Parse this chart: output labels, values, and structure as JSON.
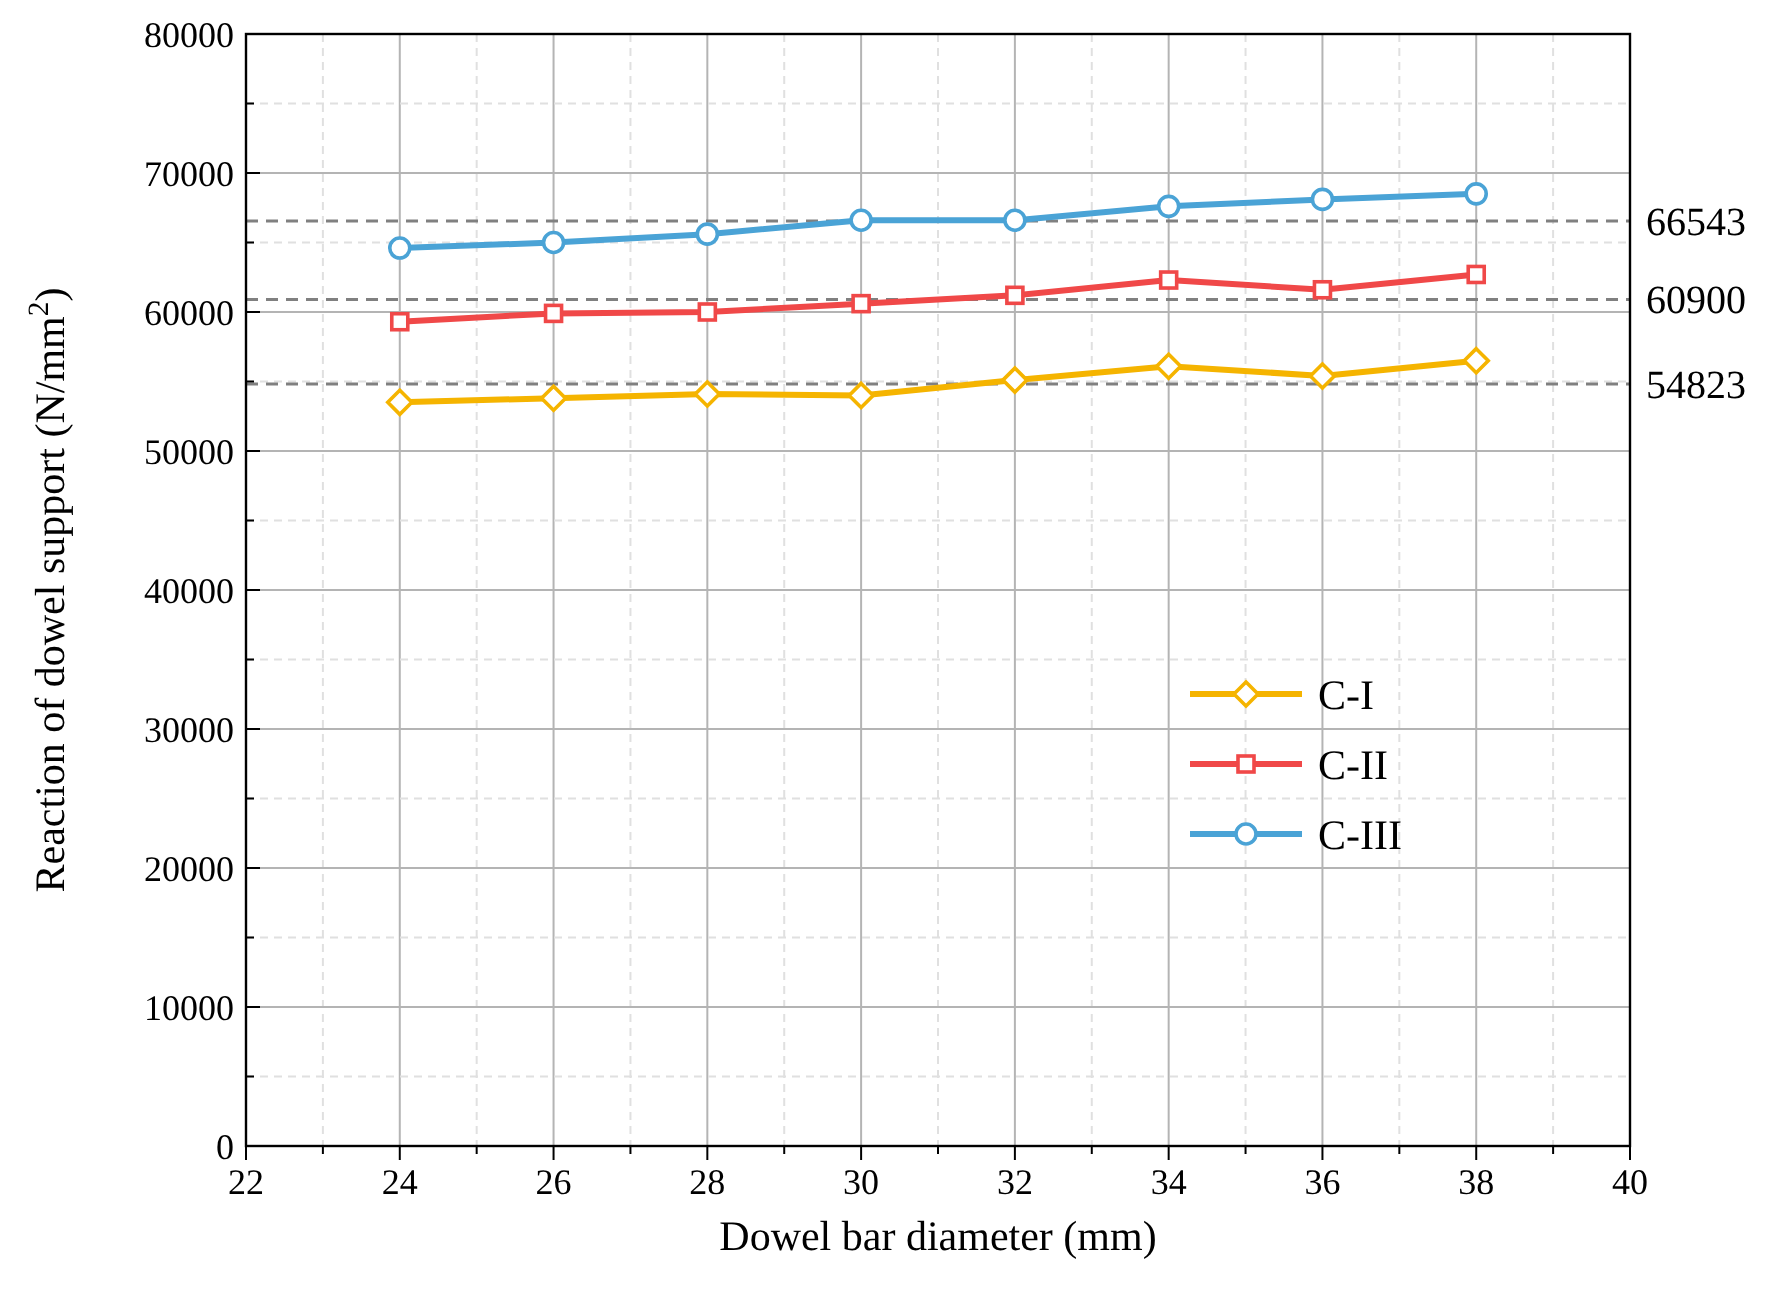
{
  "chart_data": {
    "type": "line",
    "xlabel": "Dowel bar diameter (mm)",
    "ylabel": "Reaction of dowel support (N/mm$^{2}$)",
    "x": [
      24,
      26,
      28,
      30,
      32,
      34,
      36,
      38
    ],
    "series": [
      {
        "name": "C-I",
        "color": "#f5b400",
        "marker": "diamond",
        "values": [
          53500,
          53800,
          54100,
          54000,
          55100,
          56100,
          55400,
          56500
        ]
      },
      {
        "name": "C-II",
        "color": "#f04848",
        "marker": "square",
        "values": [
          59300,
          59900,
          60000,
          60600,
          61200,
          62300,
          61600,
          62700
        ]
      },
      {
        "name": "C-III",
        "color": "#4aa3d6",
        "marker": "circle",
        "values": [
          64600,
          65000,
          65600,
          66600,
          66600,
          67600,
          68100,
          68500
        ]
      }
    ],
    "xlim": [
      22,
      40
    ],
    "xticks": [
      22,
      {
        "value": 23,
        "label": null
      },
      24,
      {
        "value": 25,
        "label": null
      },
      26,
      {
        "value": 27,
        "label": null
      },
      28,
      {
        "value": 29,
        "label": null
      },
      30,
      {
        "value": 31,
        "label": null
      },
      32,
      {
        "value": 33,
        "label": null
      },
      34,
      {
        "value": 35,
        "label": null
      },
      36,
      {
        "value": 37,
        "label": null
      },
      38,
      {
        "value": 39,
        "label": null
      },
      40
    ],
    "ylim": [
      0,
      80000
    ],
    "yticks": [
      0,
      {
        "value": 5000,
        "label": null
      },
      10000,
      {
        "value": 15000,
        "label": null
      },
      20000,
      {
        "value": 25000,
        "label": null
      },
      30000,
      {
        "value": 35000,
        "label": null
      },
      40000,
      {
        "value": 45000,
        "label": null
      },
      50000,
      {
        "value": 55000,
        "label": null
      },
      60000,
      {
        "value": 65000,
        "label": null
      },
      70000,
      {
        "value": 75000,
        "label": null
      },
      80000
    ],
    "ref_lines": [
      {
        "axis": "y",
        "value": 66543,
        "label": "66543",
        "color": "#808080",
        "line_style": "dashed"
      },
      {
        "axis": "y",
        "value": 60900,
        "label": "60900",
        "color": "#808080",
        "line_style": "dashed"
      },
      {
        "axis": "y",
        "value": 54823,
        "label": "54823",
        "color": "#808080",
        "line_style": "dashed"
      }
    ],
    "grid": true,
    "legend": "right",
    "line_style": "solid"
  }
}
